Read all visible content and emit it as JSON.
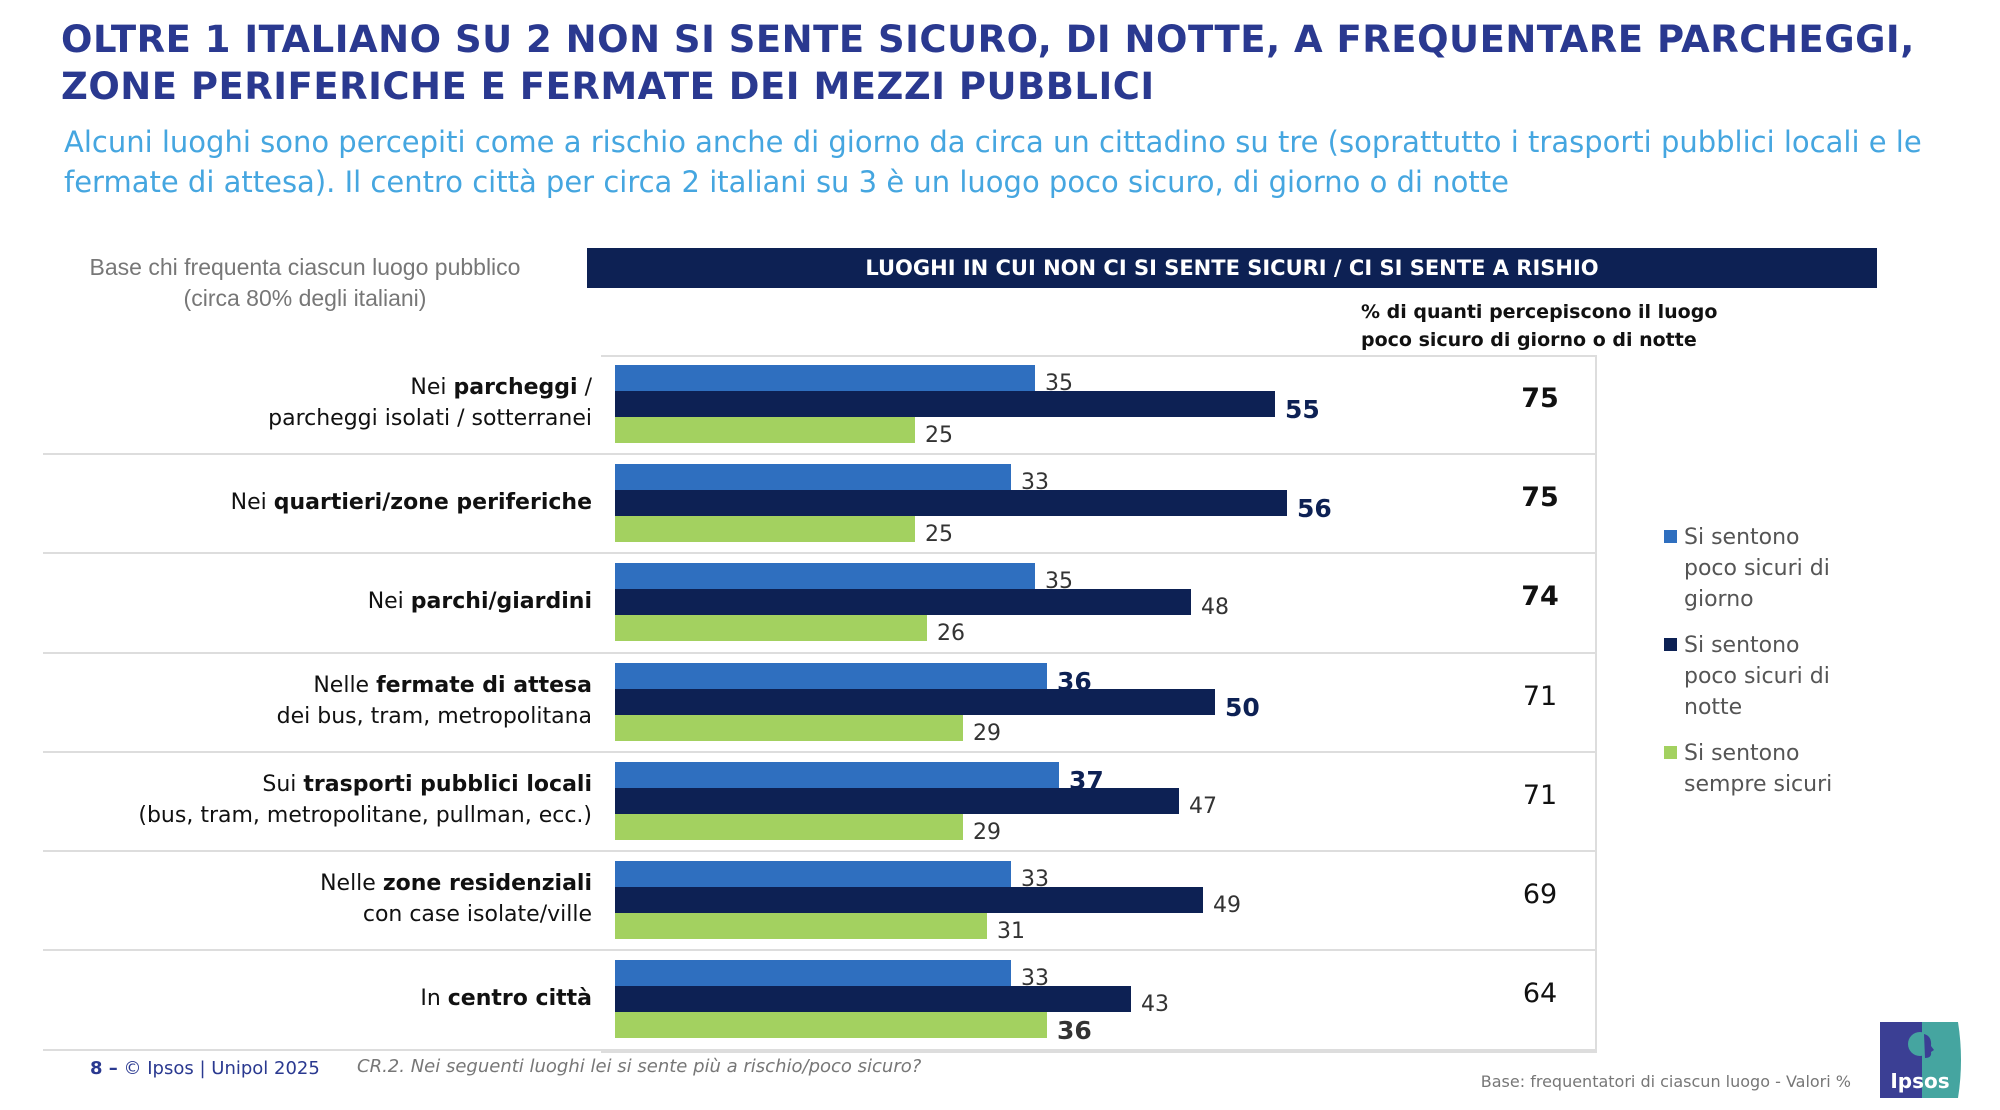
{
  "title_lines": [
    "OLTRE 1 ITALIANO SU 2 NON SI SENTE SICURO, DI NOTTE, A FREQUENTARE PARCHEGGI,",
    "ZONE PERIFERICHE E FERMATE DEI MEZZI PUBBLICI"
  ],
  "subtitle_lines": [
    "Alcuni luoghi sono percepiti come a rischio anche di giorno da circa un cittadino su tre (soprattutto i trasporti pubblici locali e le",
    "fermate di attesa). Il centro città per circa 2 italiani su 3 è un luogo poco sicuro, di giorno o di notte"
  ],
  "base_lines": [
    "Base chi frequenta ciascun luogo pubblico",
    "(circa 80% degli italiani)"
  ],
  "header_bar": "LUOGHI IN CUI NON CI SI SENTE SICURI / CI SI SENTE A RISHIO",
  "total_header_lines": [
    "% di quanti percepiscono il luogo",
    "poco sicuro di giorno o di notte"
  ],
  "colors": {
    "day": "#2f6fbf",
    "night": "#0d2154",
    "safe": "#a3d160",
    "title": "#2a3990",
    "subtitle": "#45a6e0"
  },
  "chart_data": {
    "type": "bar",
    "orientation": "horizontal",
    "grid": false,
    "legend_placement": "right",
    "categories": [
      {
        "pre": "Nei ",
        "bold": "parcheggi",
        "post": " /",
        "line2": "parcheggi isolati / sotterranei"
      },
      {
        "pre": "Nei ",
        "bold": "quartieri/zone periferiche",
        "post": "",
        "line2": ""
      },
      {
        "pre": "Nei ",
        "bold": "parchi/giardini",
        "post": "",
        "line2": ""
      },
      {
        "pre": "Nelle ",
        "bold": "fermate di attesa",
        "post": "",
        "line2": "dei bus, tram, metropolitana"
      },
      {
        "pre": "Sui ",
        "bold": "trasporti pubblici locali",
        "post": "",
        "line2": "(bus, tram, metropolitane, pullman, ecc.)"
      },
      {
        "pre": "Nelle ",
        "bold": "zone residenziali",
        "post": "",
        "line2": "con case isolate/ville"
      },
      {
        "pre": "In ",
        "bold": "centro città",
        "post": "",
        "line2": ""
      }
    ],
    "series": [
      {
        "name": "Si sentono poco sicuri di giorno",
        "color": "#2f6fbf",
        "values": [
          35,
          33,
          35,
          36,
          37,
          33,
          33
        ],
        "bold": [
          false,
          false,
          false,
          true,
          true,
          false,
          false
        ]
      },
      {
        "name": "Si sentono poco sicuri di notte",
        "color": "#0d2154",
        "values": [
          55,
          56,
          48,
          50,
          47,
          49,
          43
        ],
        "bold": [
          true,
          true,
          false,
          true,
          false,
          false,
          false
        ]
      },
      {
        "name": "Si sentono sempre sicuri",
        "color": "#a3d160",
        "values": [
          25,
          25,
          26,
          29,
          29,
          31,
          36
        ],
        "bold": [
          false,
          false,
          false,
          false,
          false,
          false,
          true
        ]
      }
    ],
    "totals": {
      "values": [
        75,
        75,
        74,
        71,
        71,
        69,
        64
      ],
      "bold": [
        true,
        true,
        true,
        false,
        false,
        false,
        false
      ]
    },
    "xlim": [
      0,
      100
    ]
  },
  "legend": [
    {
      "lines": [
        "Si sentono",
        "poco sicuri di",
        "giorno"
      ],
      "color": "#2f6fbf"
    },
    {
      "lines": [
        "Si sentono",
        "poco sicuri di",
        "notte"
      ],
      "color": "#0d2154"
    },
    {
      "lines": [
        "Si sentono",
        "sempre sicuri"
      ],
      "color": "#a3d160"
    }
  ],
  "footer": {
    "page": "8 –",
    "copyright": "© Ipsos | Unipol  2025",
    "question": "CR.2. Nei seguenti luoghi lei si sente più a rischio/poco sicuro?",
    "base": "Base: frequentatori di ciascun luogo - Valori %",
    "logo_text": "Ipsos"
  }
}
